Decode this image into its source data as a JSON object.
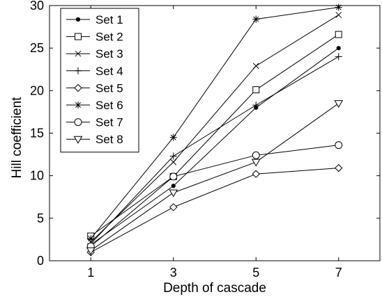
{
  "chart_data": {
    "type": "line",
    "title": "",
    "xlabel": "Depth of cascade",
    "ylabel": "Hill coefficient",
    "x": [
      1,
      3,
      5,
      7
    ],
    "xlim": [
      0,
      8
    ],
    "ylim": [
      0,
      30
    ],
    "xticks": [
      "1",
      "3",
      "5",
      "7"
    ],
    "yticks": [
      "0",
      "5",
      "10",
      "15",
      "20",
      "25",
      "30"
    ],
    "grid": false,
    "legend_position": "top-left",
    "series": [
      {
        "name": "Set 1",
        "marker": "dot",
        "values": [
          1.9,
          8.8,
          18.0,
          25.0
        ]
      },
      {
        "name": "Set 2",
        "marker": "square",
        "values": [
          2.9,
          9.9,
          20.1,
          26.6
        ]
      },
      {
        "name": "Set 3",
        "marker": "x",
        "values": [
          2.2,
          11.6,
          22.9,
          28.9
        ]
      },
      {
        "name": "Set 4",
        "marker": "plus",
        "values": [
          2.0,
          12.3,
          18.3,
          24.0
        ]
      },
      {
        "name": "Set 5",
        "marker": "diamond",
        "values": [
          1.0,
          6.3,
          10.2,
          10.9
        ]
      },
      {
        "name": "Set 6",
        "marker": "star",
        "values": [
          2.6,
          14.5,
          28.4,
          29.8
        ]
      },
      {
        "name": "Set 7",
        "marker": "circle",
        "values": [
          1.7,
          9.9,
          12.4,
          13.6
        ]
      },
      {
        "name": "Set 8",
        "marker": "triangle-down",
        "values": [
          1.2,
          8.0,
          11.6,
          18.5
        ]
      }
    ]
  }
}
